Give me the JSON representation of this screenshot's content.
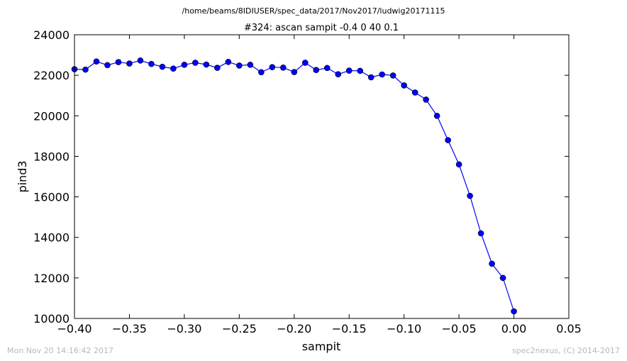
{
  "header": {
    "path": "/home/beams/8IDIUSER/spec_data/2017/Nov2017/ludwig20171115",
    "title": "#324: ascan  sampit -0.4 0  40 0.1"
  },
  "footer": {
    "timestamp": "Mon Nov 20 14:16:42 2017",
    "credit": "spec2nexus, (C) 2014-2017"
  },
  "chart_data": {
    "type": "line",
    "title": "#324: ascan  sampit -0.4 0  40 0.1",
    "xlabel": "sampit",
    "ylabel": "pind3",
    "xlim": [
      -0.4,
      0.05
    ],
    "ylim": [
      10000,
      24000
    ],
    "xticks": [
      -0.4,
      -0.35,
      -0.3,
      -0.25,
      -0.2,
      -0.15,
      -0.1,
      -0.05,
      0.0,
      0.05
    ],
    "xtick_labels": [
      "−0.40",
      "−0.35",
      "−0.30",
      "−0.25",
      "−0.20",
      "−0.15",
      "−0.10",
      "−0.05",
      "0.00",
      "0.05"
    ],
    "yticks": [
      10000,
      12000,
      14000,
      16000,
      18000,
      20000,
      22000,
      24000
    ],
    "ytick_labels": [
      "10000",
      "12000",
      "14000",
      "16000",
      "18000",
      "20000",
      "22000",
      "24000"
    ],
    "grid": false,
    "line_color": "#0000ff",
    "marker_color": "#0000ff",
    "series": [
      {
        "x": [
          -0.4,
          -0.39,
          -0.38,
          -0.37,
          -0.36,
          -0.35,
          -0.34,
          -0.33,
          -0.32,
          -0.31,
          -0.3,
          -0.29,
          -0.28,
          -0.27,
          -0.26,
          -0.25,
          -0.24,
          -0.23,
          -0.22,
          -0.21,
          -0.2,
          -0.19,
          -0.18,
          -0.17,
          -0.16,
          -0.15,
          -0.14,
          -0.13,
          -0.12,
          -0.11,
          -0.1,
          -0.09,
          -0.08,
          -0.07,
          -0.06,
          -0.05,
          -0.04,
          -0.03,
          -0.02,
          -0.01,
          0.0
        ],
        "y": [
          22300,
          22280,
          22680,
          22500,
          22650,
          22580,
          22730,
          22560,
          22420,
          22330,
          22520,
          22620,
          22530,
          22370,
          22660,
          22480,
          22520,
          22150,
          22400,
          22380,
          22160,
          22620,
          22260,
          22360,
          22050,
          22230,
          22220,
          21900,
          22040,
          21990,
          21500,
          21150,
          20800,
          20000,
          18800,
          17600,
          16050,
          14200,
          12700,
          12000,
          10350
        ]
      }
    ]
  }
}
